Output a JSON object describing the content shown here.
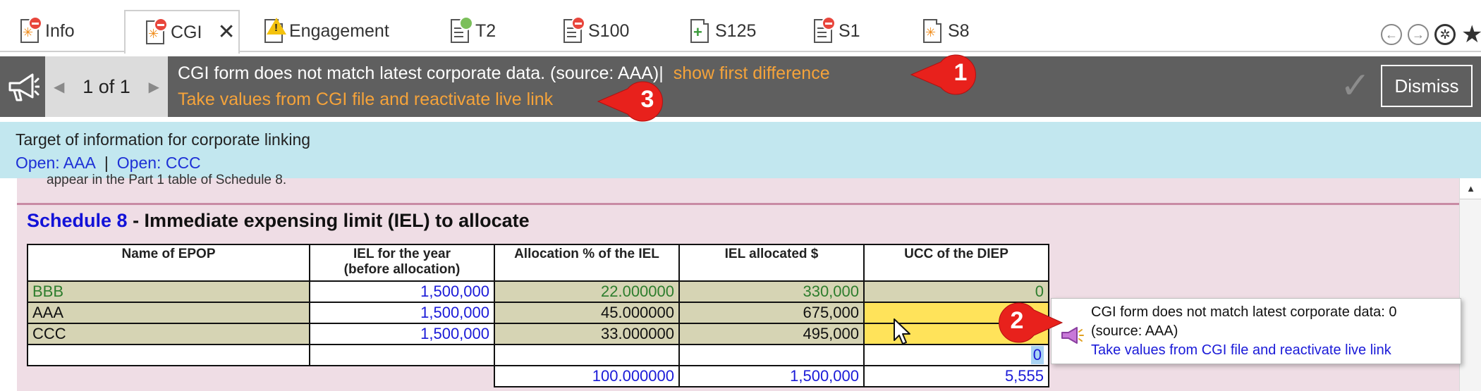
{
  "tabs": [
    {
      "label": "Info",
      "icon": "doc-error-icon"
    },
    {
      "label": "CGI",
      "icon": "doc-error-icon",
      "active": true,
      "close": "✕"
    },
    {
      "label": "Engagement",
      "icon": "doc-warning-icon"
    },
    {
      "label": "T2",
      "icon": "doc-ok-icon"
    },
    {
      "label": "S100",
      "icon": "doc-error-icon"
    },
    {
      "label": "S125",
      "icon": "doc-add-icon"
    },
    {
      "label": "S1",
      "icon": "doc-error-icon"
    },
    {
      "label": "S8",
      "icon": "doc-star-icon"
    }
  ],
  "notification": {
    "pager": "1 of 1",
    "message": "CGI form does not match latest corporate data. (source: AAA)|",
    "show_diff": "show first difference",
    "take_values": "Take values from CGI file and reactivate live link",
    "dismiss": "Dismiss"
  },
  "info": {
    "title": "Target of information for corporate linking",
    "link1": "Open: AAA",
    "separator": "|",
    "link2": "Open: CCC"
  },
  "snippet": "appear in the Part 1 table of Schedule 8.",
  "schedule": {
    "title_blue": "Schedule 8",
    "title_rest": " - Immediate expensing limit (IEL) to allocate",
    "headers": [
      "Name of EPOP",
      "IEL for the year\n(before allocation)",
      "Allocation % of the IEL",
      "IEL allocated $",
      "UCC of the DIEP"
    ],
    "rows": [
      {
        "name": "BBB",
        "iel": "1,500,000",
        "pct": "22.000000",
        "alloc": "330,000",
        "ucc": "0"
      },
      {
        "name": "AAA",
        "iel": "1,500,000",
        "pct": "45.000000",
        "alloc": "675,000",
        "ucc": ""
      },
      {
        "name": "CCC",
        "iel": "1,500,000",
        "pct": "33.000000",
        "alloc": "495,000",
        "ucc": ""
      },
      {
        "name": "",
        "iel": "",
        "pct": "",
        "alloc": "",
        "ucc": "0"
      }
    ],
    "totals": {
      "pct": "100.000000",
      "alloc": "1,500,000",
      "ucc": "5,555"
    }
  },
  "tooltip": {
    "line1": "CGI form does not match latest corporate data: 0",
    "line2": "(source: AAA)",
    "link": "Take values from CGI file and reactivate live link"
  },
  "callouts": [
    "1",
    "2",
    "3"
  ],
  "colors": {
    "notif_bg": "#5f5f5f",
    "link_orange": "#f5a33a",
    "info_bg": "#c2e7ef",
    "form_bg": "#efdde5",
    "cell_olive": "#d6d4b4",
    "cell_yellow": "#ffe35a",
    "callout_red": "#e8211c"
  }
}
